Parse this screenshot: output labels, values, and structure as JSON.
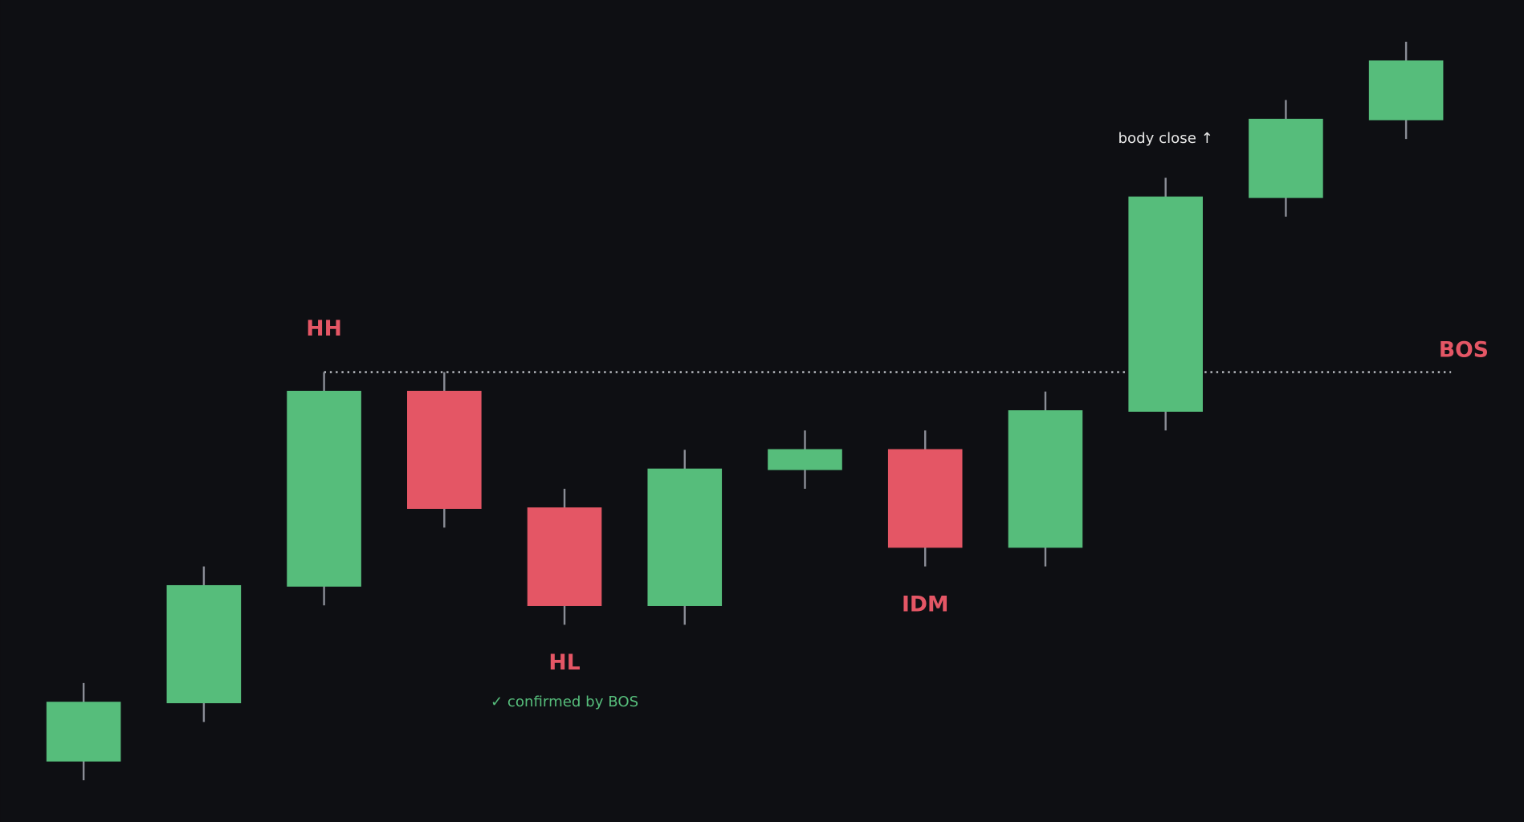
{
  "chart_data": {
    "type": "candlestick",
    "open": [
      3,
      6,
      12,
      22,
      16,
      11,
      18,
      19,
      14,
      21,
      32,
      36
    ],
    "high": [
      7,
      13,
      23,
      23,
      17,
      19,
      20,
      20,
      22,
      33,
      37,
      40
    ],
    "low": [
      2,
      5,
      11,
      15,
      10,
      10,
      17,
      13,
      13,
      20,
      31,
      35
    ],
    "close": [
      6,
      12,
      22,
      16,
      11,
      18,
      19,
      14,
      21,
      32,
      36,
      39
    ],
    "up_color": "#56bd7b",
    "down_color": "#e45665",
    "bos_level": 23,
    "annotations": [
      {
        "text": "HH",
        "color": "#e45665"
      },
      {
        "text": "HL",
        "color": "#e45665"
      },
      {
        "text": "✓ confirmed by BOS",
        "color": "#56bd7b"
      },
      {
        "text": "IDM",
        "color": "#e45665"
      },
      {
        "text": "body close ↑",
        "color": "#e8e8e8"
      },
      {
        "text": "BOS",
        "color": "#e45665"
      }
    ]
  }
}
